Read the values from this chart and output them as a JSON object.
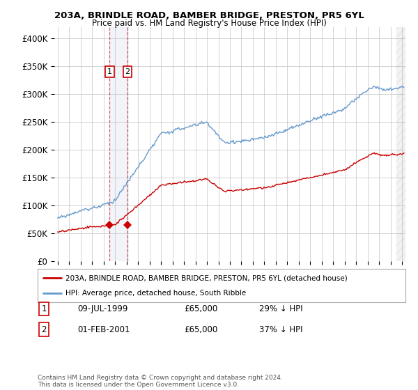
{
  "title1": "203A, BRINDLE ROAD, BAMBER BRIDGE, PRESTON, PR5 6YL",
  "title2": "Price paid vs. HM Land Registry's House Price Index (HPI)",
  "ylabel_ticks": [
    "£0",
    "£50K",
    "£100K",
    "£150K",
    "£200K",
    "£250K",
    "£300K",
    "£350K",
    "£400K"
  ],
  "ytick_vals": [
    0,
    50000,
    100000,
    150000,
    200000,
    250000,
    300000,
    350000,
    400000
  ],
  "ylim": [
    0,
    420000
  ],
  "xlim_start": 1994.7,
  "xlim_end": 2025.3,
  "hpi_color": "#6699cc",
  "price_color": "#cc0000",
  "marker_color": "#cc0000",
  "transaction1_date": "09-JUL-1999",
  "transaction1_price": "£65,000",
  "transaction1_hpi": "29% ↓ HPI",
  "transaction2_date": "01-FEB-2001",
  "transaction2_price": "£65,000",
  "transaction2_hpi": "37% ↓ HPI",
  "transaction1_x": 1999.52,
  "transaction2_x": 2001.08,
  "transaction1_y": 65000,
  "transaction2_y": 65000,
  "legend_line1": "203A, BRINDLE ROAD, BAMBER BRIDGE, PRESTON, PR5 6YL (detached house)",
  "legend_line2": "HPI: Average price, detached house, South Ribble",
  "footer": "Contains HM Land Registry data © Crown copyright and database right 2024.\nThis data is licensed under the Open Government Licence v3.0.",
  "background_color": "#ffffff",
  "grid_color": "#cccccc",
  "hatch_color": "#cccccc"
}
